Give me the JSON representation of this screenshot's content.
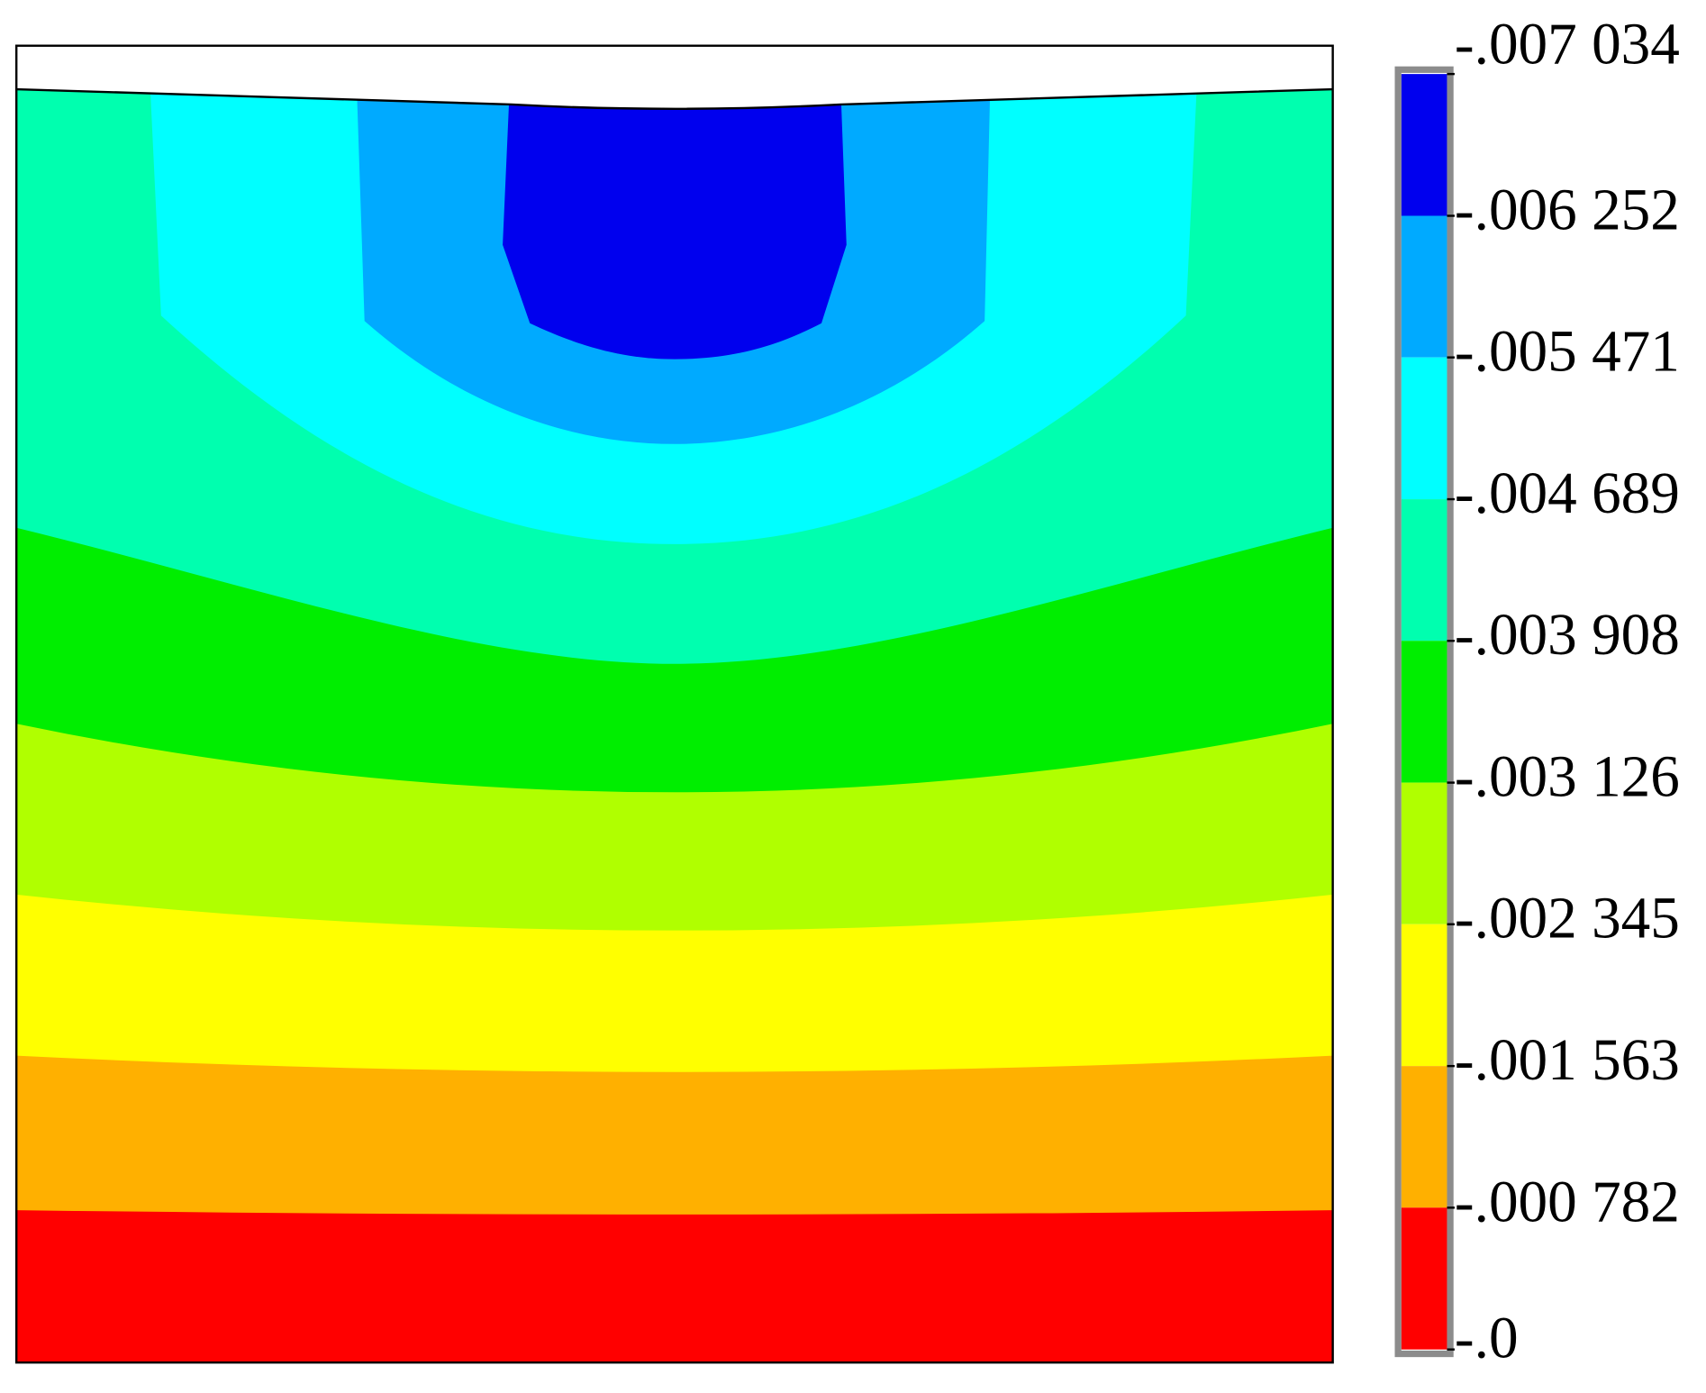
{
  "chart_data": {
    "type": "contour",
    "clim": [
      -0.007034,
      0
    ],
    "cticks": [
      {
        "value": -0.007034,
        "label": "-.007 034"
      },
      {
        "value": -0.006252,
        "label": "-.006 252"
      },
      {
        "value": -0.005471,
        "label": "-.005 471"
      },
      {
        "value": -0.004689,
        "label": "-.004 689"
      },
      {
        "value": -0.003908,
        "label": "-.003 908"
      },
      {
        "value": -0.003126,
        "label": "-.003 126"
      },
      {
        "value": -0.002345,
        "label": "-.002 345"
      },
      {
        "value": -0.001563,
        "label": "-.001 563"
      },
      {
        "value": -0.000782,
        "label": "-.000 782"
      },
      {
        "value": 0,
        "label": "-.0"
      }
    ],
    "colors": [
      "#0000ee",
      "#00aaff",
      "#00ffff",
      "#00ffaf",
      "#00ee00",
      "#b0ff00",
      "#ffff00",
      "#ffb000",
      "#ff0000"
    ]
  }
}
